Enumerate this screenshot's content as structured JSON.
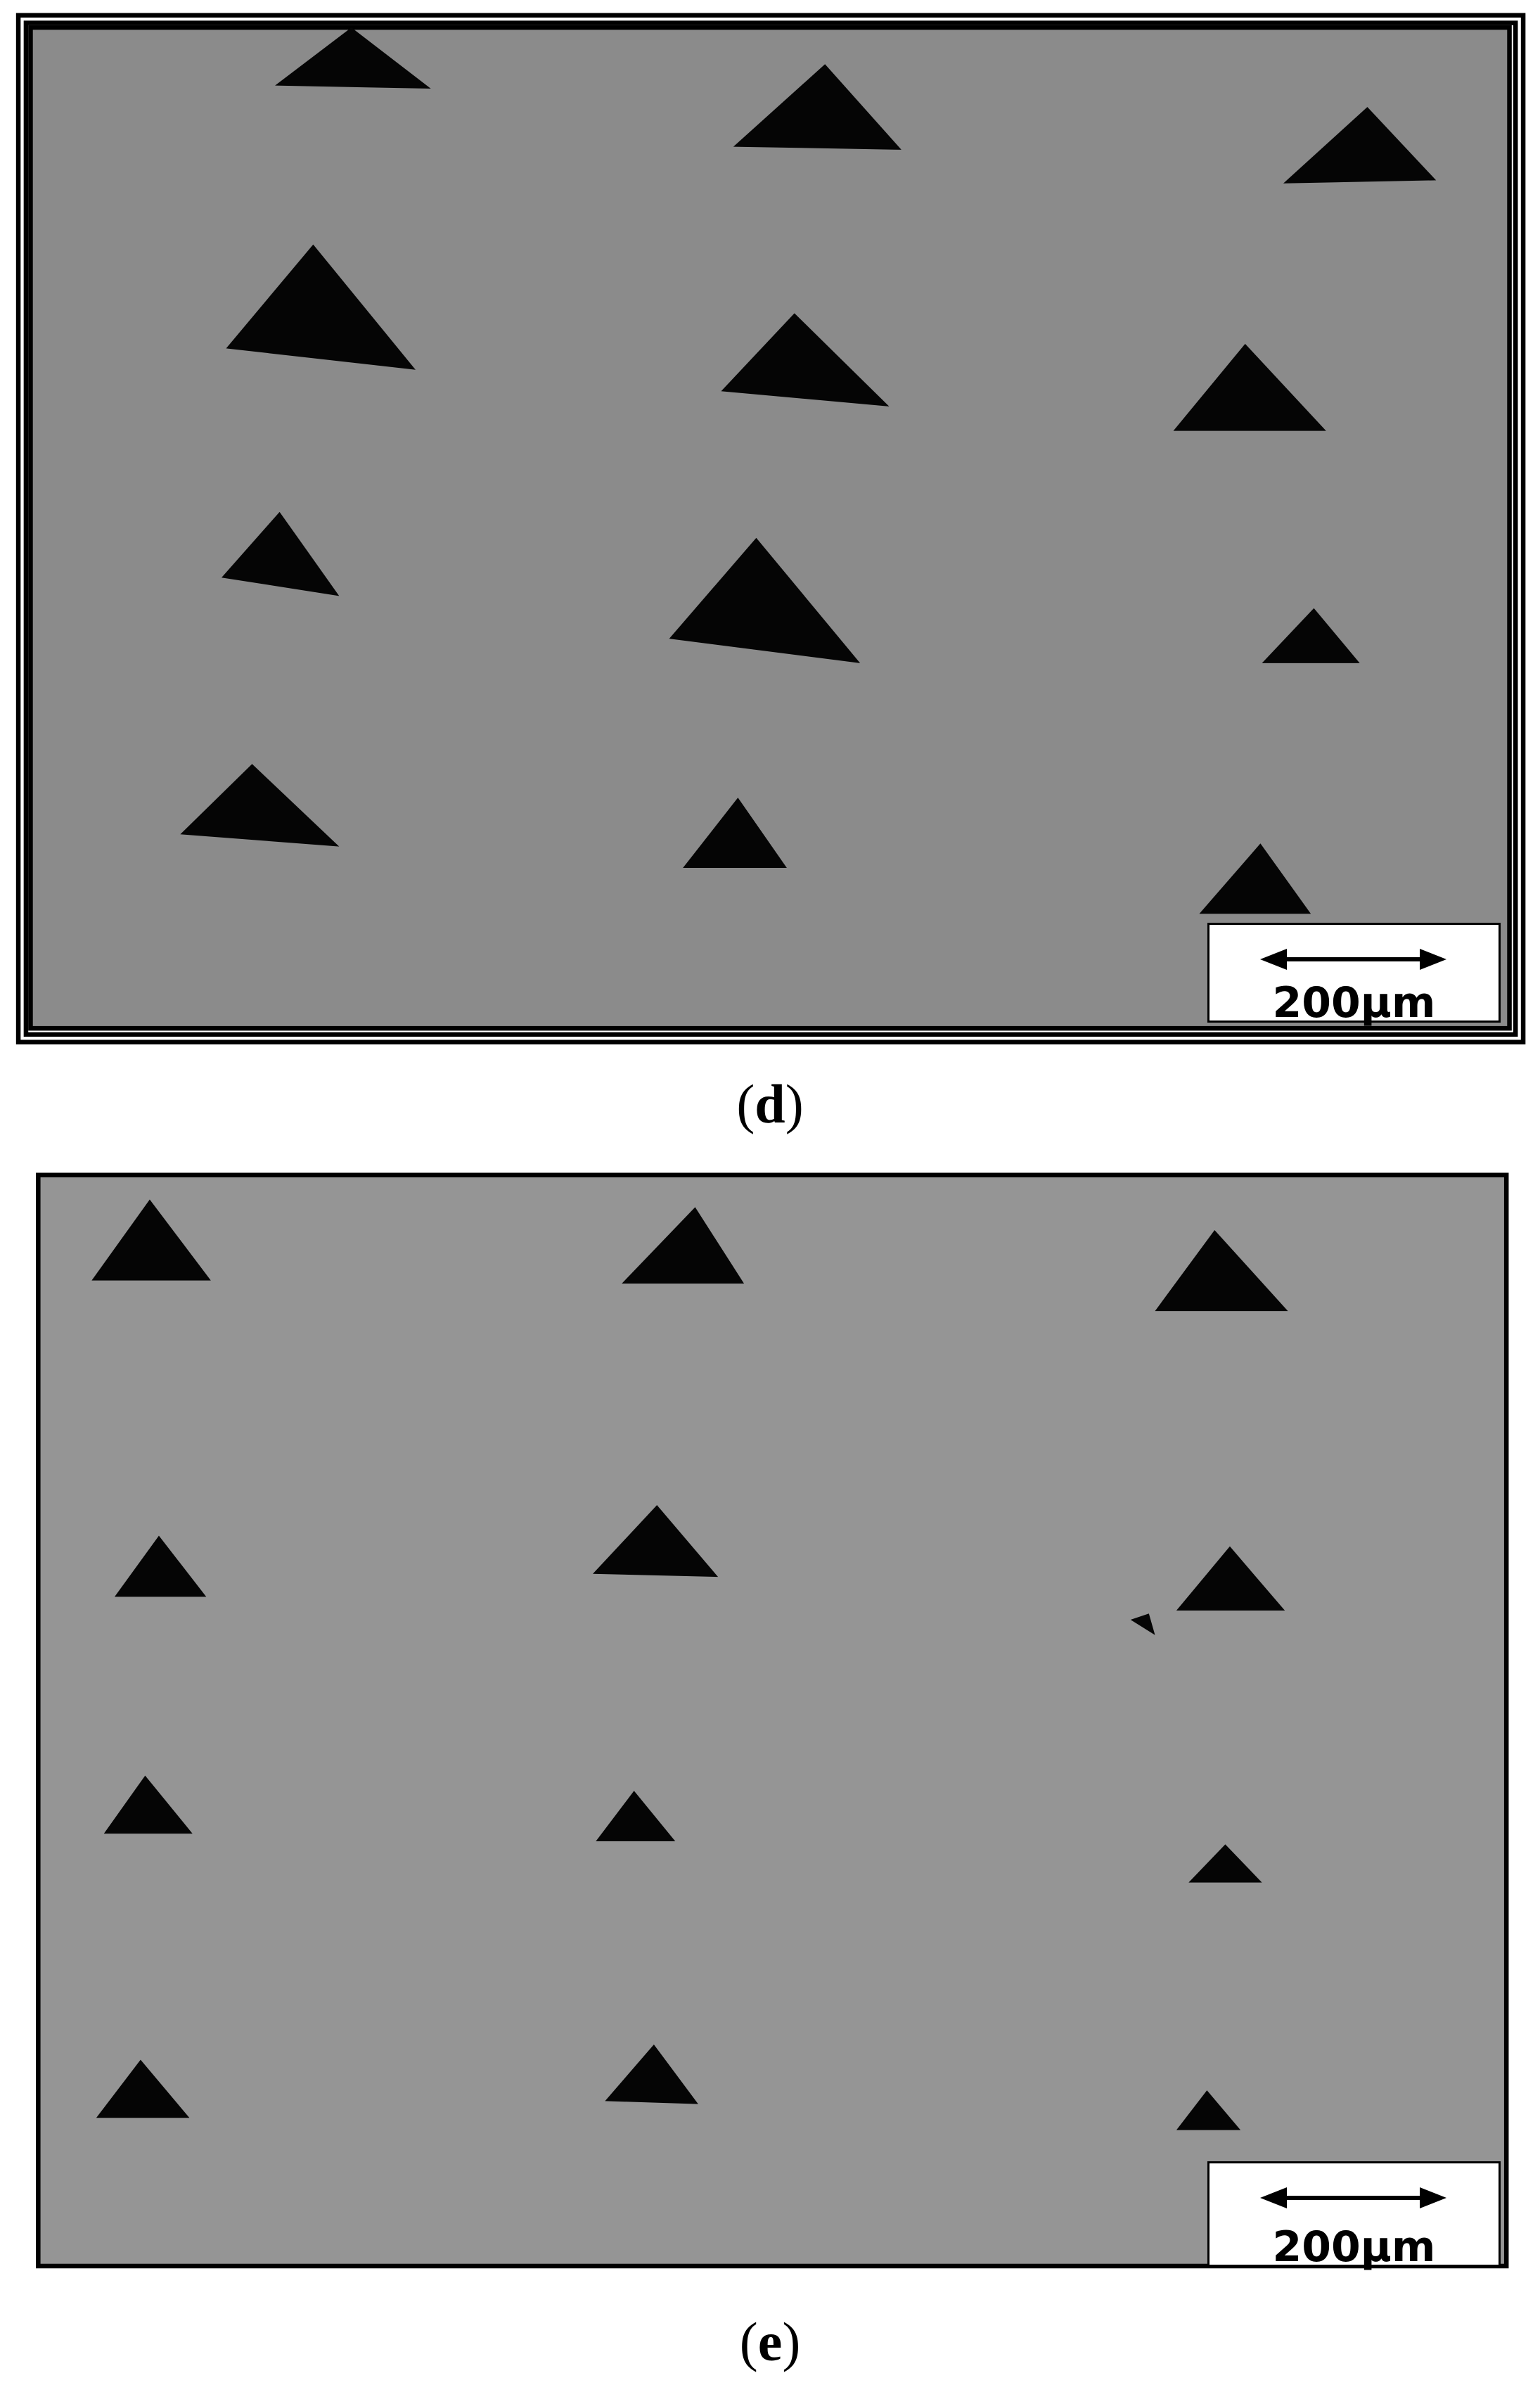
{
  "panels": [
    {
      "label": "d",
      "scale_bar": "200µm",
      "background": "#8b8b8b"
    },
    {
      "label": "e",
      "scale_bar": "200µm",
      "background": "#959595"
    }
  ]
}
